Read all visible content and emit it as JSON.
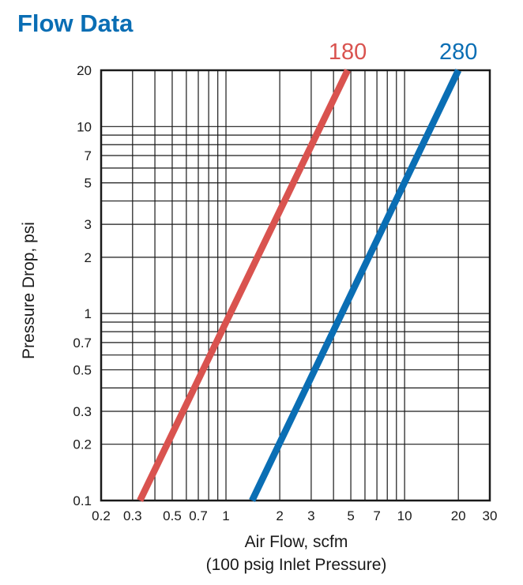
{
  "title": "Flow Data",
  "chart_data": {
    "type": "line",
    "xscale": "log",
    "yscale": "log",
    "xlim": [
      0.2,
      30
    ],
    "ylim": [
      0.1,
      20
    ],
    "xlabel": "Air Flow, scfm",
    "xlabel_sub": "(100 psig Inlet Pressure)",
    "ylabel": "Pressure Drop, psi",
    "grid": true,
    "x_tick_labels": [
      "0.2",
      "0.3",
      "0.5",
      "0.7",
      "1",
      "2",
      "3",
      "5",
      "7",
      "10",
      "20",
      "30"
    ],
    "x_tick_values": [
      0.2,
      0.3,
      0.5,
      0.7,
      1,
      2,
      3,
      5,
      7,
      10,
      20,
      30
    ],
    "y_tick_labels": [
      "0.1",
      "0.2",
      "0.3",
      "0.5",
      "0.7",
      "1",
      "2",
      "3",
      "5",
      "7",
      "10",
      "20"
    ],
    "y_tick_values": [
      0.1,
      0.2,
      0.3,
      0.5,
      0.7,
      1,
      2,
      3,
      5,
      7,
      10,
      20
    ],
    "series": [
      {
        "name": "180",
        "color": "#d9534f",
        "x": [
          0.33,
          4.8
        ],
        "y": [
          0.1,
          20
        ]
      },
      {
        "name": "280",
        "color": "#0a6eb4",
        "x": [
          1.4,
          20
        ],
        "y": [
          0.1,
          20
        ]
      }
    ]
  }
}
